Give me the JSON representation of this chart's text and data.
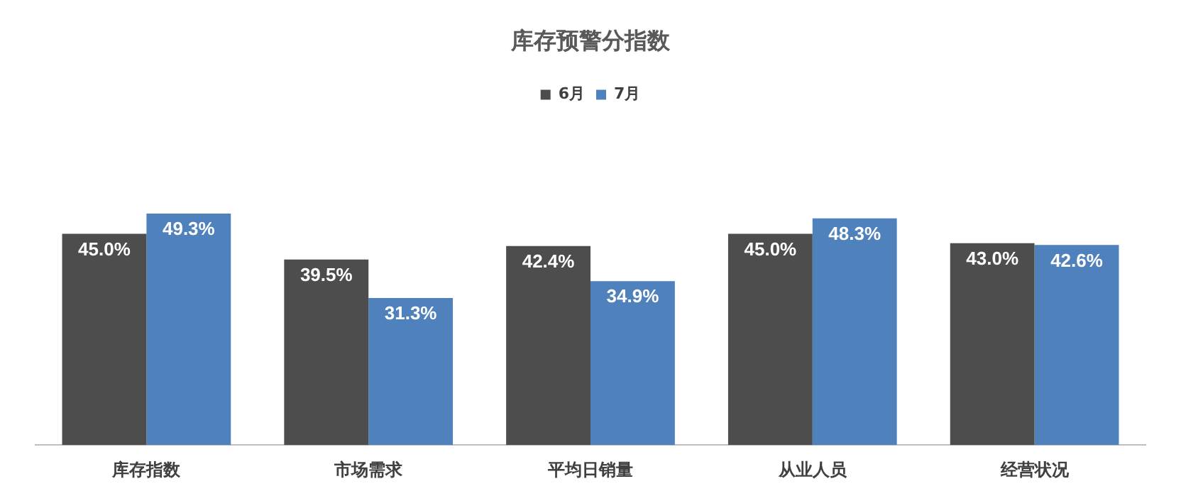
{
  "chart_data": {
    "type": "bar",
    "title": "库存预警分指数",
    "categories": [
      "库存指数",
      "市场需求",
      "平均日销量",
      "从业人员",
      "经营状况"
    ],
    "series": [
      {
        "name": "6月",
        "color": "#4d4d4d",
        "values": [
          45.0,
          39.5,
          42.4,
          45.0,
          43.0
        ],
        "value_labels": [
          "45.0%",
          "39.5%",
          "42.4%",
          "45.0%",
          "43.0%"
        ]
      },
      {
        "name": "7月",
        "color": "#4f81bd",
        "values": [
          49.3,
          31.3,
          34.9,
          48.3,
          42.6
        ],
        "value_labels": [
          "49.3%",
          "31.3%",
          "34.9%",
          "48.3%",
          "42.6%"
        ]
      }
    ],
    "grid": false,
    "legend": "top",
    "tick_labels": "x"
  }
}
